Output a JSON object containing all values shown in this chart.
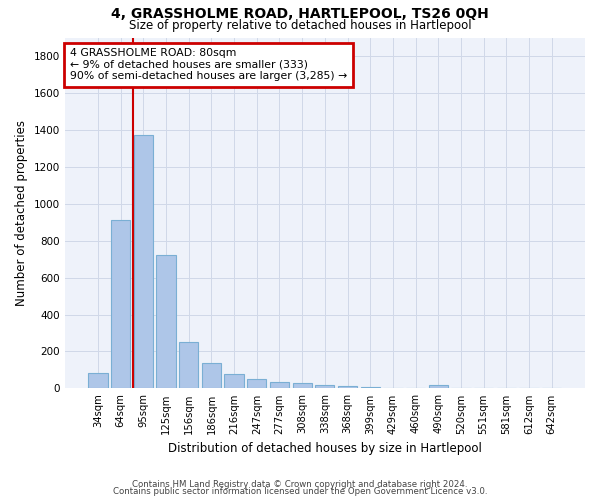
{
  "title1": "4, GRASSHOLME ROAD, HARTLEPOOL, TS26 0QH",
  "title2": "Size of property relative to detached houses in Hartlepool",
  "xlabel": "Distribution of detached houses by size in Hartlepool",
  "ylabel": "Number of detached properties",
  "categories": [
    "34sqm",
    "64sqm",
    "95sqm",
    "125sqm",
    "156sqm",
    "186sqm",
    "216sqm",
    "247sqm",
    "277sqm",
    "308sqm",
    "338sqm",
    "368sqm",
    "399sqm",
    "429sqm",
    "460sqm",
    "490sqm",
    "520sqm",
    "551sqm",
    "581sqm",
    "612sqm",
    "642sqm"
  ],
  "values": [
    85,
    910,
    1370,
    720,
    250,
    140,
    80,
    50,
    35,
    30,
    20,
    15,
    10,
    0,
    0,
    20,
    0,
    0,
    0,
    0,
    0
  ],
  "bar_color": "#aec6e8",
  "bar_edge_color": "#7aafd4",
  "grid_color": "#d0d8e8",
  "background_color": "#eef2fa",
  "red_line_x": 1.53,
  "annotation_line1": "4 GRASSHOLME ROAD: 80sqm",
  "annotation_line2": "← 9% of detached houses are smaller (333)",
  "annotation_line3": "90% of semi-detached houses are larger (3,285) →",
  "annotation_box_color": "#ffffff",
  "annotation_border_color": "#cc0000",
  "footer1": "Contains HM Land Registry data © Crown copyright and database right 2024.",
  "footer2": "Contains public sector information licensed under the Open Government Licence v3.0.",
  "ylim": [
    0,
    1900
  ],
  "yticks": [
    0,
    200,
    400,
    600,
    800,
    1000,
    1200,
    1400,
    1600,
    1800
  ]
}
